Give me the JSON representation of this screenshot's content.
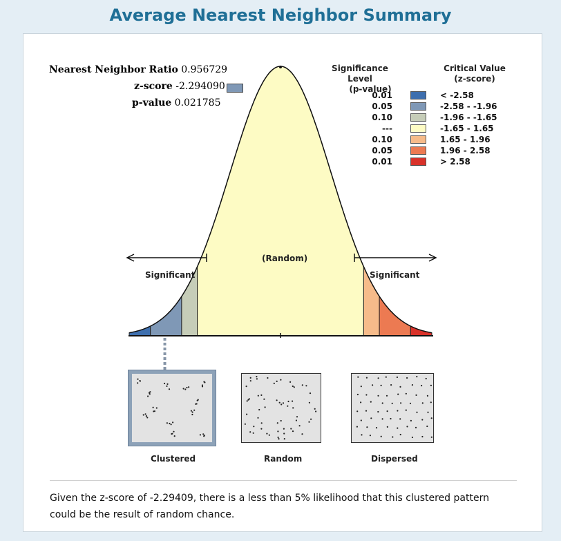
{
  "title": "Average Nearest Neighbor Summary",
  "stats": {
    "nnr_label": "Nearest Neighbor Ratio",
    "nnr_value": "0.956729",
    "z_label": "z-score",
    "z_value": "-2.294090",
    "p_label": "p-value",
    "p_value": "0.021785",
    "z_swatch_color": "#7f98b6"
  },
  "legend": {
    "sig_header_1": "Significance Level",
    "sig_header_2": "(p-value)",
    "crit_header_1": "Critical Value",
    "crit_header_2": "(z-score)",
    "rows": [
      {
        "p": "0.01",
        "range": "< -2.58",
        "color": "#3e6fae"
      },
      {
        "p": "0.05",
        "range": "-2.58 - -1.96",
        "color": "#7f98b6"
      },
      {
        "p": "0.10",
        "range": "-1.96 - -1.65",
        "color": "#c6cdb8"
      },
      {
        "p": "---",
        "range": "-1.65 - 1.65",
        "color": "#fdfbc4"
      },
      {
        "p": "0.10",
        "range": "1.65 - 1.96",
        "color": "#f6bb8a"
      },
      {
        "p": "0.05",
        "range": "1.96 - 2.58",
        "color": "#ec7a52"
      },
      {
        "p": "0.01",
        "range": "> 2.58",
        "color": "#d9322a"
      }
    ]
  },
  "diagram": {
    "random_label": "(Random)",
    "significant_left": "Significant",
    "significant_right": "Significant"
  },
  "patterns": [
    {
      "label": "Clustered",
      "selected": true
    },
    {
      "label": "Random",
      "selected": false
    },
    {
      "label": "Dispersed",
      "selected": false
    }
  ],
  "caption": "Given the z-score of -2.29409, there is a less than 5% likelihood that this clustered pattern could be the result of random chance."
}
